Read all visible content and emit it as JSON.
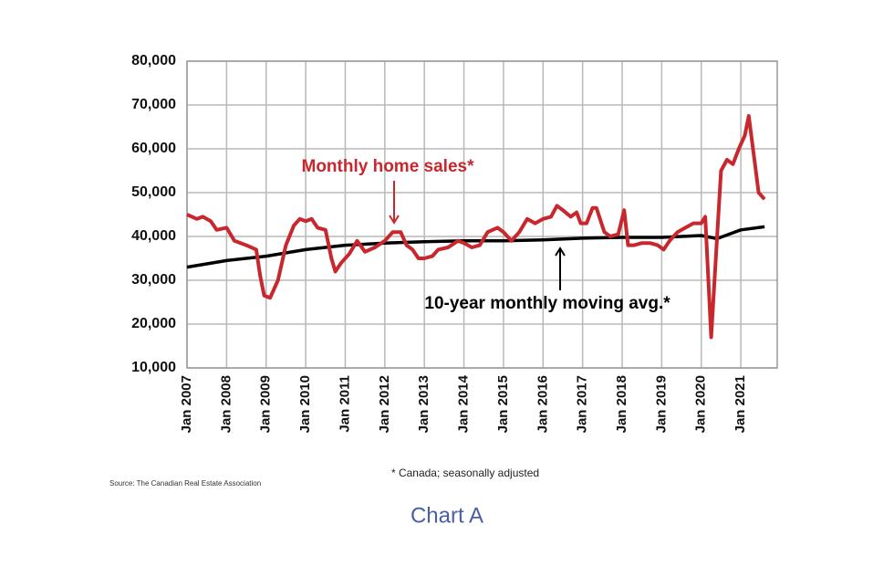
{
  "chart_data": {
    "type": "line",
    "annotations": [
      "Monthly home sales*",
      "10-year monthly moving avg.*"
    ],
    "footnote": "* Canada; seasonally adjusted",
    "source": "Source: The Canadian Real Estate Association",
    "xlim": [
      2007,
      2021.92
    ],
    "xticks": [
      {
        "value": 2007,
        "label": "Jan 2007"
      },
      {
        "value": 2008,
        "label": "Jan 2008"
      },
      {
        "value": 2009,
        "label": "Jan 2009"
      },
      {
        "value": 2010,
        "label": "Jan 2010"
      },
      {
        "value": 2011,
        "label": "Jan 2011"
      },
      {
        "value": 2012,
        "label": "Jan 2012"
      },
      {
        "value": 2013,
        "label": "Jan 2013"
      },
      {
        "value": 2014,
        "label": "Jan 2014"
      },
      {
        "value": 2015,
        "label": "Jan 2015"
      },
      {
        "value": 2016,
        "label": "Jan 2016"
      },
      {
        "value": 2017,
        "label": "Jan 2017"
      },
      {
        "value": 2018,
        "label": "Jan 2018"
      },
      {
        "value": 2019,
        "label": "Jan 2019"
      },
      {
        "value": 2020,
        "label": "Jan 2020"
      },
      {
        "value": 2021,
        "label": "Jan 2021"
      }
    ],
    "ylim": [
      10000,
      80000
    ],
    "yticks": [
      {
        "value": 10000,
        "label": "10,000"
      },
      {
        "value": 20000,
        "label": "20,000"
      },
      {
        "value": 30000,
        "label": "30,000"
      },
      {
        "value": 40000,
        "label": "40,000"
      },
      {
        "value": 50000,
        "label": "50,000"
      },
      {
        "value": 60000,
        "label": "60,000"
      },
      {
        "value": 70000,
        "label": "70,000"
      },
      {
        "value": 80000,
        "label": "80,000"
      }
    ],
    "grid": true,
    "series": [
      {
        "color": "#c8282d",
        "x": [
          2007.0,
          2007.25,
          2007.4,
          2007.6,
          2007.75,
          2008.0,
          2008.2,
          2008.5,
          2008.75,
          2008.85,
          2008.95,
          2009.1,
          2009.3,
          2009.5,
          2009.7,
          2009.85,
          2010.0,
          2010.15,
          2010.3,
          2010.5,
          2010.65,
          2010.75,
          2010.9,
          2011.1,
          2011.3,
          2011.5,
          2011.75,
          2012.0,
          2012.2,
          2012.4,
          2012.55,
          2012.7,
          2012.85,
          2013.0,
          2013.2,
          2013.35,
          2013.6,
          2013.85,
          2014.0,
          2014.2,
          2014.4,
          2014.6,
          2014.85,
          2015.0,
          2015.2,
          2015.4,
          2015.6,
          2015.8,
          2016.0,
          2016.2,
          2016.35,
          2016.5,
          2016.7,
          2016.85,
          2016.95,
          2017.1,
          2017.25,
          2017.35,
          2017.55,
          2017.7,
          2017.9,
          2018.05,
          2018.15,
          2018.3,
          2018.5,
          2018.7,
          2018.9,
          2019.05,
          2019.2,
          2019.4,
          2019.6,
          2019.8,
          2020.0,
          2020.1,
          2020.25,
          2020.4,
          2020.5,
          2020.65,
          2020.8,
          2020.95,
          2021.1,
          2021.2,
          2021.35,
          2021.45,
          2021.6
        ],
        "values": [
          45000,
          44000,
          44500,
          43500,
          41500,
          42000,
          39000,
          38000,
          37000,
          31000,
          26500,
          26000,
          30000,
          38000,
          42500,
          44000,
          43500,
          44000,
          42000,
          41500,
          35000,
          32000,
          34000,
          36000,
          39000,
          36500,
          37500,
          39000,
          41000,
          41000,
          38000,
          37000,
          35000,
          35000,
          35500,
          37000,
          37500,
          39000,
          38500,
          37500,
          38000,
          41000,
          42000,
          41000,
          39000,
          41000,
          44000,
          43000,
          44000,
          44500,
          47000,
          46000,
          44500,
          45500,
          43000,
          43000,
          46500,
          46500,
          41000,
          40000,
          40500,
          46000,
          38000,
          38000,
          38500,
          38500,
          38000,
          37000,
          39000,
          41000,
          42000,
          43000,
          43000,
          44500,
          17000,
          40000,
          55000,
          57500,
          56500,
          60000,
          63000,
          67500,
          57000,
          50000,
          48500
        ]
      },
      {
        "color": "#000000",
        "x": [
          2007.0,
          2008.0,
          2009.0,
          2010.0,
          2011.0,
          2012.0,
          2013.0,
          2014.0,
          2015.0,
          2016.0,
          2017.0,
          2018.0,
          2019.0,
          2020.0,
          2020.4,
          2021.0,
          2021.6
        ],
        "values": [
          33000,
          34500,
          35500,
          37000,
          38000,
          38500,
          38800,
          39000,
          39000,
          39200,
          39600,
          39800,
          39800,
          40200,
          39500,
          41500,
          42200
        ]
      }
    ]
  },
  "caption": "Chart A"
}
